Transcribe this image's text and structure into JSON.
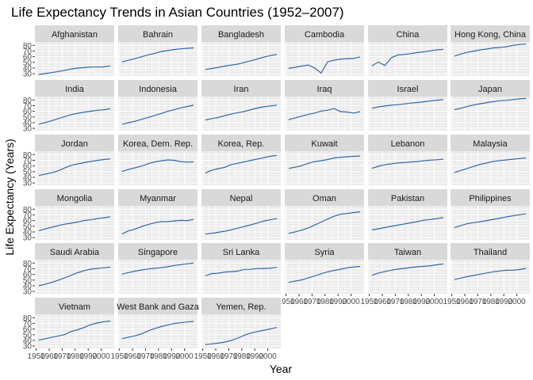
{
  "chart_data": {
    "type": "line",
    "title": "Life Expectancy Trends in Asian Countries (1952–2007)",
    "xlabel": "Year",
    "ylabel": "Life Expectancy (Years)",
    "x": [
      1952,
      1957,
      1962,
      1967,
      1972,
      1977,
      1982,
      1987,
      1992,
      1997,
      2002,
      2007
    ],
    "xlim": [
      1949,
      2010
    ],
    "ylim": [
      26,
      86
    ],
    "x_ticks": [
      "1950",
      "1960",
      "1970",
      "1980",
      "1990",
      "2000"
    ],
    "y_ticks": [
      "30",
      "40",
      "50",
      "60",
      "70",
      "80"
    ],
    "line_color": "#3366aa",
    "panel_background": "#ebebeb",
    "strip_background": "#d9d9d9",
    "grid": true,
    "series": [
      {
        "name": "Afghanistan",
        "values": [
          28.8,
          30.3,
          32.0,
          34.0,
          36.1,
          38.4,
          39.9,
          40.8,
          41.7,
          41.8,
          42.1,
          43.8
        ]
      },
      {
        "name": "Bahrain",
        "values": [
          50.9,
          53.8,
          56.9,
          59.9,
          63.3,
          65.6,
          69.1,
          70.8,
          72.6,
          73.9,
          74.8,
          75.6
        ]
      },
      {
        "name": "Bangladesh",
        "values": [
          37.5,
          39.3,
          41.2,
          43.5,
          45.3,
          46.9,
          50.0,
          52.8,
          56.0,
          59.4,
          62.0,
          64.1
        ]
      },
      {
        "name": "Cambodia",
        "values": [
          39.4,
          41.4,
          43.4,
          45.4,
          40.3,
          31.2,
          51.0,
          53.9,
          55.8,
          56.5,
          56.8,
          59.7
        ]
      },
      {
        "name": "China",
        "values": [
          44.0,
          50.5,
          44.5,
          58.4,
          63.1,
          64.0,
          65.5,
          67.3,
          68.7,
          70.4,
          72.0,
          73.0
        ]
      },
      {
        "name": "Hong Kong, China",
        "values": [
          61.0,
          64.8,
          67.7,
          70.0,
          72.0,
          73.6,
          75.5,
          76.2,
          77.6,
          80.0,
          81.5,
          82.2
        ]
      },
      {
        "name": "India",
        "values": [
          37.4,
          40.2,
          43.6,
          47.2,
          50.7,
          54.2,
          56.6,
          58.6,
          60.2,
          61.8,
          62.9,
          64.7
        ]
      },
      {
        "name": "Indonesia",
        "values": [
          37.5,
          39.9,
          42.5,
          46.0,
          49.2,
          52.7,
          56.2,
          60.1,
          62.7,
          66.0,
          68.6,
          70.7
        ]
      },
      {
        "name": "Iran",
        "values": [
          44.9,
          47.2,
          49.3,
          52.5,
          55.2,
          57.7,
          59.6,
          63.0,
          65.7,
          68.0,
          69.5,
          71.0
        ]
      },
      {
        "name": "Iraq",
        "values": [
          45.3,
          48.4,
          51.5,
          54.5,
          57.0,
          60.4,
          62.0,
          65.0,
          59.5,
          58.8,
          57.0,
          59.5
        ]
      },
      {
        "name": "Israel",
        "values": [
          65.4,
          67.8,
          69.4,
          70.8,
          71.6,
          73.1,
          74.5,
          75.6,
          76.9,
          78.3,
          79.7,
          80.7
        ]
      },
      {
        "name": "Japan",
        "values": [
          63.0,
          65.5,
          68.7,
          71.4,
          73.4,
          75.4,
          77.1,
          78.7,
          79.4,
          80.7,
          82.0,
          82.6
        ]
      },
      {
        "name": "Jordan",
        "values": [
          43.2,
          45.7,
          48.1,
          51.6,
          56.5,
          61.1,
          63.7,
          65.9,
          68.0,
          69.8,
          71.3,
          72.5
        ]
      },
      {
        "name": "Korea, Dem. Rep.",
        "values": [
          50.1,
          54.1,
          56.7,
          59.9,
          64.0,
          67.2,
          69.1,
          70.6,
          70.0,
          67.7,
          66.7,
          67.3
        ]
      },
      {
        "name": "Korea, Rep.",
        "values": [
          47.5,
          52.7,
          55.3,
          57.7,
          62.6,
          64.8,
          67.1,
          69.8,
          72.2,
          74.6,
          77.0,
          78.6
        ]
      },
      {
        "name": "Kuwait",
        "values": [
          55.6,
          58.0,
          60.5,
          64.6,
          67.7,
          69.3,
          71.3,
          74.2,
          75.2,
          76.2,
          76.9,
          77.6
        ]
      },
      {
        "name": "Lebanon",
        "values": [
          55.9,
          59.5,
          62.1,
          63.9,
          65.4,
          66.1,
          67.0,
          67.9,
          69.3,
          70.3,
          71.0,
          72.0
        ]
      },
      {
        "name": "Malaysia",
        "values": [
          48.5,
          52.1,
          55.7,
          59.4,
          63.0,
          65.3,
          68.0,
          69.5,
          70.7,
          71.9,
          73.0,
          74.2
        ]
      },
      {
        "name": "Mongolia",
        "values": [
          42.2,
          45.2,
          48.3,
          51.3,
          53.8,
          55.5,
          57.5,
          60.2,
          61.3,
          63.6,
          65.0,
          66.8
        ]
      },
      {
        "name": "Myanmar",
        "values": [
          36.3,
          41.9,
          45.1,
          49.4,
          53.1,
          56.1,
          58.1,
          58.3,
          59.3,
          60.3,
          59.9,
          62.1
        ]
      },
      {
        "name": "Nepal",
        "values": [
          36.2,
          37.7,
          39.4,
          41.2,
          43.9,
          46.7,
          49.6,
          52.5,
          55.7,
          59.4,
          61.3,
          63.8
        ]
      },
      {
        "name": "Oman",
        "values": [
          37.6,
          40.1,
          43.2,
          46.9,
          52.1,
          57.4,
          62.7,
          67.7,
          71.2,
          72.5,
          74.2,
          75.6
        ]
      },
      {
        "name": "Pakistan",
        "values": [
          43.4,
          45.6,
          47.7,
          49.8,
          51.9,
          54.0,
          56.2,
          58.2,
          60.8,
          61.8,
          63.6,
          65.5
        ]
      },
      {
        "name": "Philippines",
        "values": [
          47.8,
          51.3,
          54.8,
          56.4,
          58.1,
          60.1,
          62.1,
          64.2,
          66.5,
          68.6,
          70.3,
          71.7
        ]
      },
      {
        "name": "Saudi Arabia",
        "values": [
          39.9,
          42.9,
          45.9,
          49.9,
          53.9,
          58.7,
          63.0,
          66.8,
          69.3,
          70.5,
          71.6,
          72.8
        ]
      },
      {
        "name": "Singapore",
        "values": [
          60.4,
          63.2,
          65.8,
          67.9,
          69.5,
          70.8,
          71.8,
          73.6,
          75.8,
          77.2,
          78.8,
          80.0
        ]
      },
      {
        "name": "Sri Lanka",
        "values": [
          57.6,
          61.5,
          62.2,
          64.3,
          65.0,
          65.9,
          68.8,
          69.0,
          70.4,
          70.5,
          70.8,
          72.4
        ]
      },
      {
        "name": "Syria",
        "values": [
          45.9,
          48.3,
          50.3,
          53.7,
          57.3,
          61.2,
          64.6,
          67.0,
          69.2,
          71.5,
          73.1,
          74.1
        ]
      },
      {
        "name": "Taiwan",
        "values": [
          58.5,
          62.4,
          65.2,
          67.5,
          69.4,
          70.6,
          72.2,
          73.4,
          74.3,
          75.3,
          77.0,
          78.4
        ]
      },
      {
        "name": "Thailand",
        "values": [
          50.8,
          53.6,
          56.1,
          58.3,
          60.4,
          62.5,
          64.6,
          66.1,
          67.3,
          67.5,
          68.6,
          70.6
        ]
      },
      {
        "name": "Vietnam",
        "values": [
          40.4,
          42.9,
          45.4,
          47.8,
          50.3,
          55.8,
          58.8,
          62.8,
          67.7,
          70.7,
          73.0,
          74.2
        ]
      },
      {
        "name": "West Bank and Gaza",
        "values": [
          43.2,
          45.7,
          48.1,
          51.6,
          56.5,
          60.8,
          64.4,
          67.0,
          69.7,
          71.1,
          72.4,
          73.4
        ]
      },
      {
        "name": "Yemen, Rep.",
        "values": [
          32.5,
          34.0,
          35.2,
          37.0,
          39.8,
          44.2,
          49.1,
          52.9,
          55.6,
          58.0,
          60.3,
          62.7
        ]
      }
    ]
  }
}
